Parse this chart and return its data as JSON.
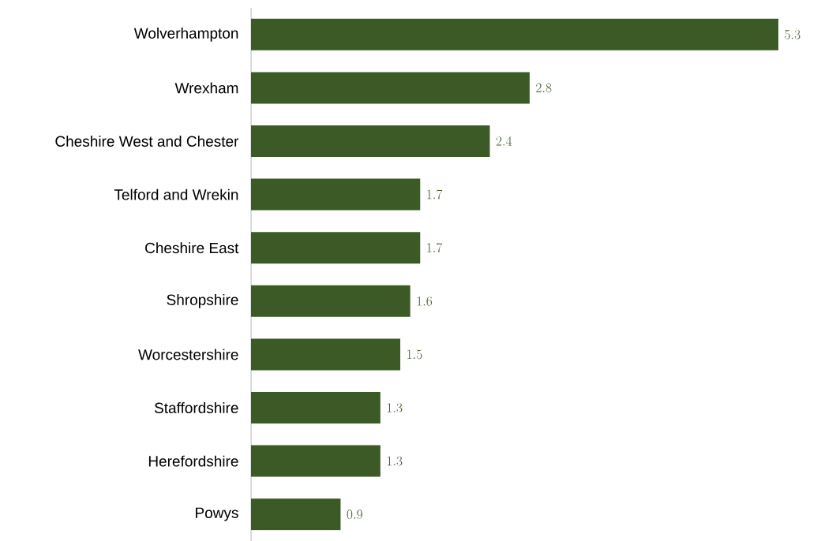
{
  "chart_data": {
    "type": "bar",
    "orientation": "horizontal",
    "data_labels": true,
    "color": "#3b5a25",
    "categories": [
      "Wolverhampton",
      "Wrexham",
      "Cheshire West and Chester",
      "Telford and Wrekin",
      "Cheshire East",
      "Shropshire",
      "Worcestershire",
      "Staffordshire",
      "Herefordshire",
      "Powys"
    ],
    "values": [
      5.3,
      2.8,
      2.4,
      1.7,
      1.7,
      1.6,
      1.5,
      1.3,
      1.3,
      0.9
    ]
  }
}
